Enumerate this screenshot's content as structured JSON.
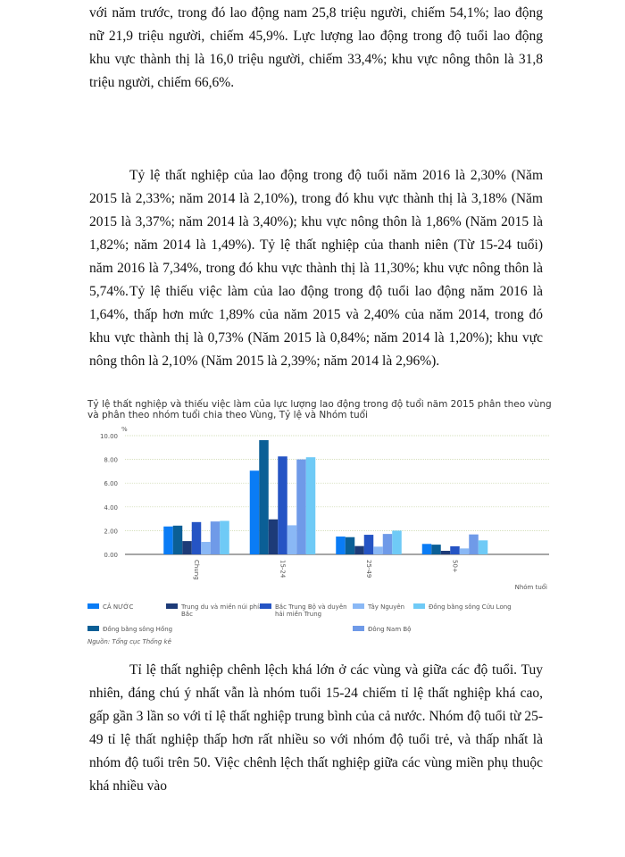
{
  "paragraphs": [
    "với năm trước, trong đó lao động nam 25,8 triệu người, chiếm 54,1%; lao động nữ 21,9 triệu người, chiếm 45,9%. Lực lượng lao động trong độ tuổi lao động khu vực thành thị là 16,0 triệu người, chiếm 33,4%; khu vực nông thôn là 31,8 triệu người, chiếm 66,6%.",
    "Tỷ lệ thất nghiệp của lao động trong độ tuổi năm 2016 là 2,30% (Năm 2015 là 2,33%; năm 2014 là 2,10%), trong đó khu vực thành thị là 3,18% (Năm 2015 là 3,37%; năm 2014 là 3,40%); khu vực nông thôn là 1,86% (Năm 2015 là 1,82%; năm 2014 là 1,49%). Tỷ lệ thất nghiệp của thanh niên (Từ 15-24 tuổi) năm 2016 là 7,34%, trong đó khu vực thành thị là 11,30%; khu vực nông thôn là 5,74%.",
    "Tỷ lệ thiếu việc làm của lao động trong độ tuổi lao động năm 2016 là 1,64%, thấp hơn mức 1,89% của năm 2015 và 2,40% của năm 2014, trong đó khu vực thành thị là 0,73% (Năm 2015 là 0,84%; năm 2014 là 1,20%); khu vực nông thôn là 2,10% (Năm 2015 là 2,39%; năm 2014 là 2,96%).",
    "Tỉ lệ thất nghiệp chênh lệch khá lớn ở các vùng và giữa các độ tuổi. Tuy nhiên, đáng chú ý nhất vẫn là nhóm tuổi 15-24 chiếm tỉ lệ thất nghiệp khá cao, gấp gần 3 lần so với tỉ lệ thất nghiệp trung bình của cả nước. Nhóm độ tuổi từ 25-49 tỉ lệ thất nghiệp thấp hơn rất nhiều so với nhóm độ tuổi trẻ, và thấp nhất là nhóm độ tuổi trên 50. Việc chênh lệch thất nghiệp giữa các vùng miền phụ thuộc khá nhiều vào"
  ],
  "chart_data": {
    "type": "bar",
    "title": "Tỷ lệ thất nghiệp và thiếu việc làm của lực lượng lao động trong độ tuổi năm 2015 phân theo vùng và phân theo nhóm tuổi chia theo Vùng, Tỷ lệ và Nhóm tuổi",
    "ylabel": "%",
    "xlabel": "Nhóm tuổi",
    "ylim": [
      0,
      10
    ],
    "yticks": [
      "0.00",
      "2.00",
      "4.00",
      "6.00",
      "8.00",
      "10.00"
    ],
    "categories": [
      "Chung",
      "15-24",
      "25-49",
      "50+"
    ],
    "grid": true,
    "legend_position": "bottom",
    "series": [
      {
        "name": "CẢ NƯỚC",
        "color": "#0a7cf5",
        "values": [
          2.35,
          7.05,
          1.5,
          0.88
        ]
      },
      {
        "name": "Đồng bằng sông Hồng",
        "color": "#0b5f96",
        "values": [
          2.42,
          9.62,
          1.45,
          0.82
        ]
      },
      {
        "name": "Trung du và miền núi phía Bắc",
        "color": "#1d3b78",
        "values": [
          1.12,
          2.95,
          0.7,
          0.3
        ]
      },
      {
        "name": "Bắc Trung Bộ và duyên hải miền Trung",
        "color": "#2554c4",
        "values": [
          2.72,
          8.25,
          1.65,
          0.68
        ]
      },
      {
        "name": "Tây Nguyên",
        "color": "#8ab8f5",
        "values": [
          1.05,
          2.45,
          0.65,
          0.5
        ]
      },
      {
        "name": "Đông Nam Bộ",
        "color": "#6f9ae8",
        "values": [
          2.77,
          8.0,
          1.72,
          1.68
        ]
      },
      {
        "name": "Đồng bằng sông Cửu Long",
        "color": "#6fcaf6",
        "values": [
          2.82,
          8.18,
          2.0,
          1.18
        ]
      }
    ],
    "source": "Nguồn: Tổng cục Thống kê"
  }
}
